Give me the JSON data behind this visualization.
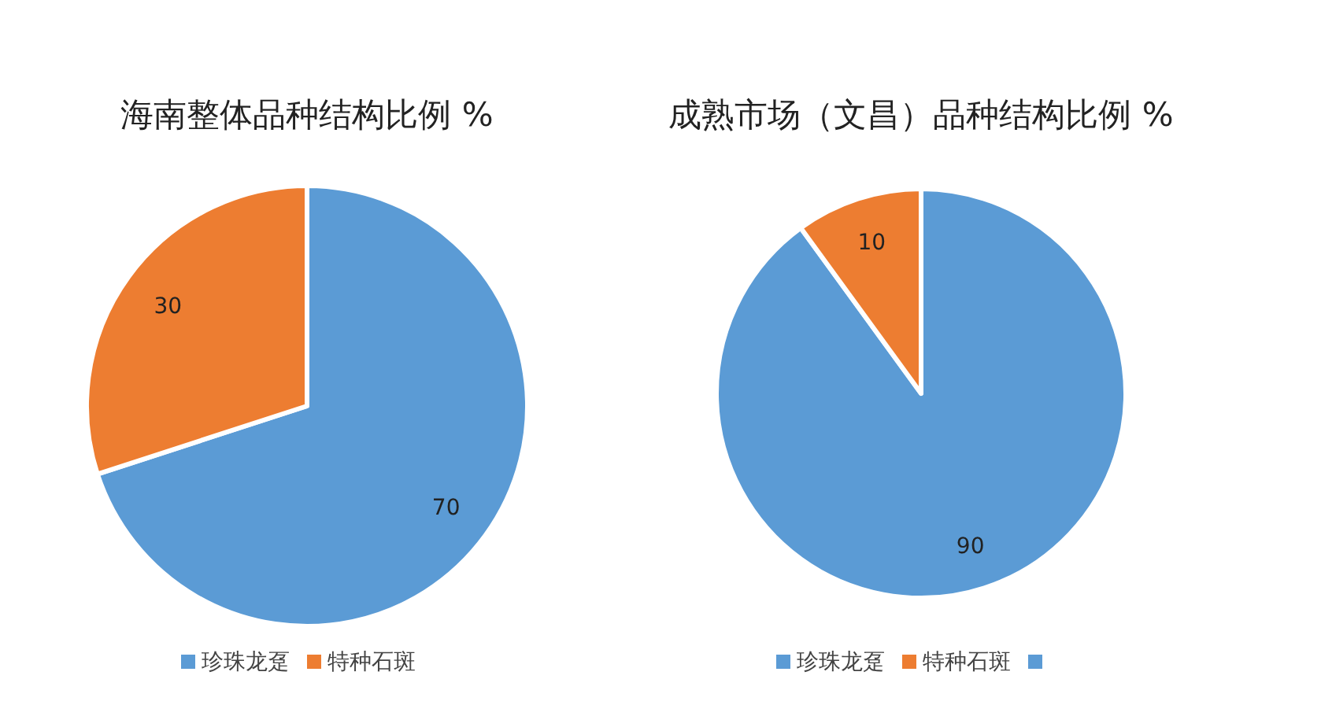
{
  "chart_data": [
    {
      "type": "pie",
      "title": "海南整体品种结构比例 %",
      "categories": [
        "珍珠龙趸",
        "特种石斑"
      ],
      "values": [
        70,
        30
      ],
      "colors": [
        "#5b9bd5",
        "#ed7d31"
      ],
      "data_labels": true,
      "legend": "bottom"
    },
    {
      "type": "pie",
      "title": "成熟市场（文昌）品种结构比例 %",
      "categories": [
        "珍珠龙趸",
        "特种石斑",
        null
      ],
      "values": [
        90,
        10,
        0
      ],
      "colors": [
        "#5b9bd5",
        "#ed7d31",
        "#5b9bd5"
      ],
      "data_labels": true,
      "legend": "bottom"
    }
  ]
}
